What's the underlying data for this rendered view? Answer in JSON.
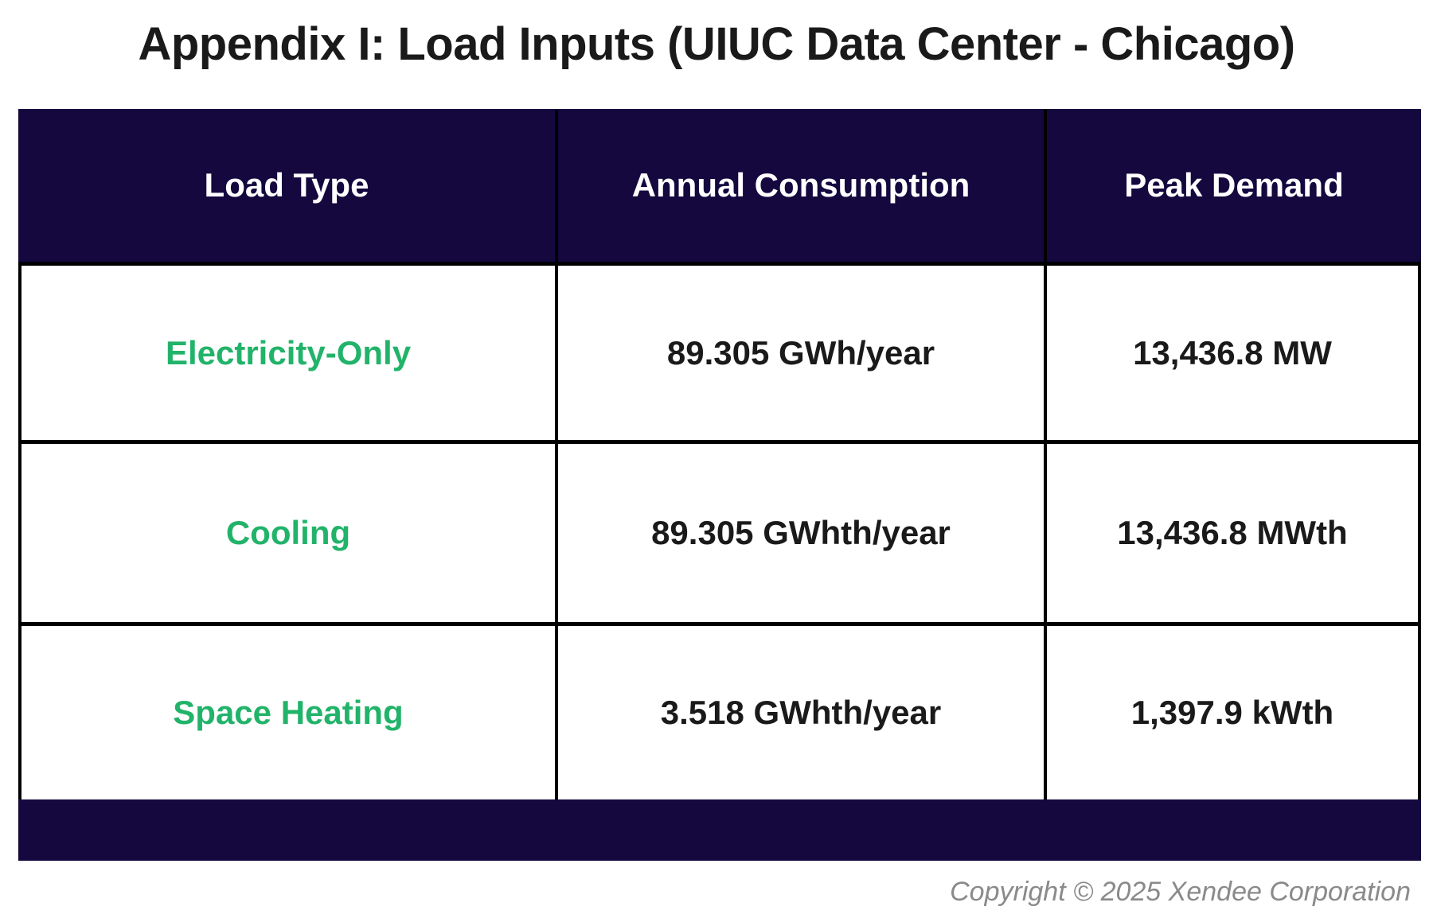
{
  "title": "Appendix I: Load Inputs (UIUC Data Center - Chicago)",
  "table": {
    "headers": [
      "Load Type",
      "Annual Consumption",
      "Peak Demand"
    ],
    "rows": [
      {
        "load_type": "Electricity-Only",
        "annual_consumption": "89.305 GWh/year",
        "peak_demand": "13,436.8 MW"
      },
      {
        "load_type": "Cooling",
        "annual_consumption": "89.305 GWhth/year",
        "peak_demand": "13,436.8 MWth"
      },
      {
        "load_type": "Space Heating",
        "annual_consumption": "3.518 GWhth/year",
        "peak_demand": "1,397.9 kWth"
      }
    ]
  },
  "footer": {
    "copyright": "Copyright © 2025 Xendee Corporation"
  },
  "colors": {
    "header_bg": "#14083f",
    "load_type_text": "#22b36a",
    "value_text": "#1a1a1a",
    "copyright_text": "#8a8a8a"
  }
}
